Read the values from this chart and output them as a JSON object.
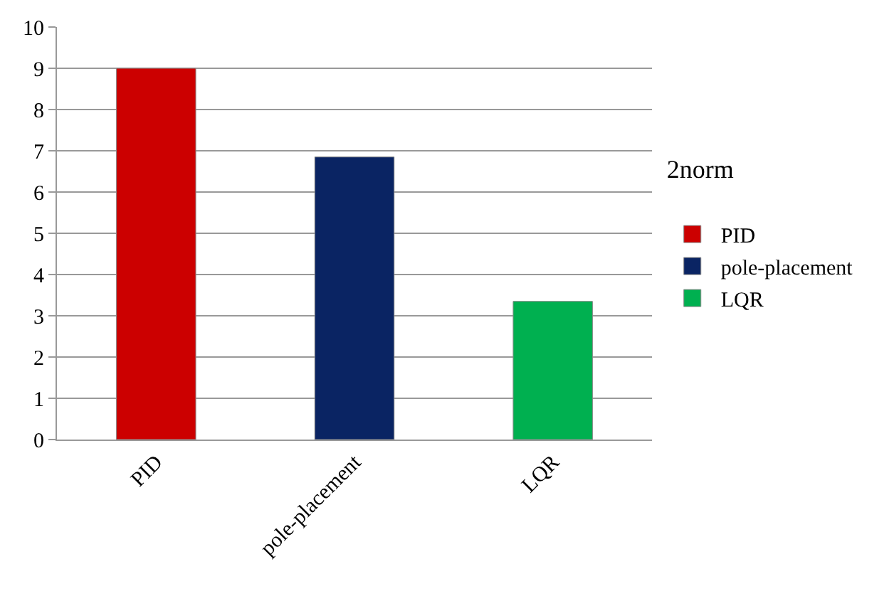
{
  "chart_data": {
    "type": "bar",
    "categories": [
      "PID",
      "pole-placement",
      "LQR"
    ],
    "series": [
      {
        "name": "PID",
        "color": "#cc0000",
        "values": [
          9.0,
          null,
          null
        ]
      },
      {
        "name": "pole-placement",
        "color": "#0a2463",
        "values": [
          null,
          6.85,
          null
        ]
      },
      {
        "name": "LQR",
        "color": "#00b050",
        "values": [
          null,
          null,
          3.35
        ]
      }
    ],
    "legend_title": "2norm",
    "legend": "right",
    "ylim": [
      0,
      10
    ],
    "yticks": [
      0,
      1,
      2,
      3,
      4,
      5,
      6,
      7,
      8,
      9,
      10
    ],
    "grid": "y"
  }
}
